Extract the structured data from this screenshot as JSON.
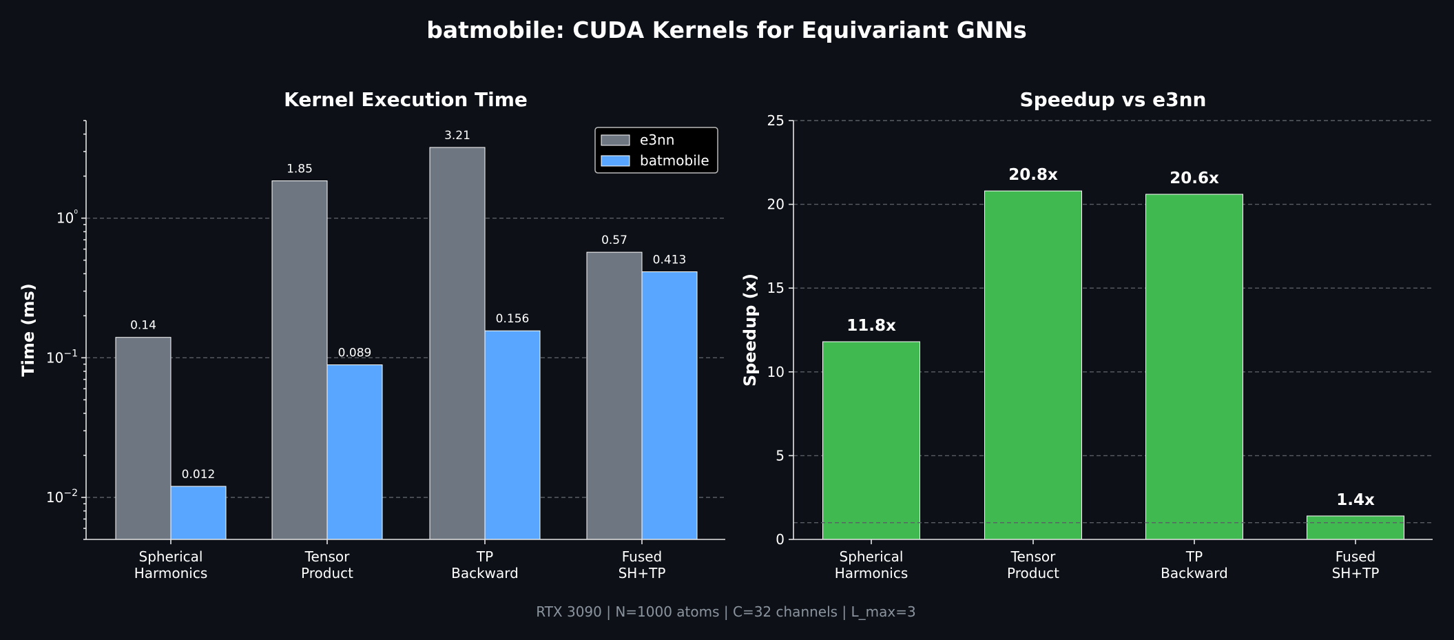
{
  "title": "batmobile: CUDA Kernels for Equivariant GNNs",
  "footer": "RTX 3090 | N=1000 atoms | C=32 channels | L_max=3",
  "colors": {
    "background": "#0d1117",
    "e3nn": "#6e7681",
    "batmobile": "#58a6ff",
    "speedup": "#3fb950",
    "footer": "#8b949e"
  },
  "chart_data": [
    {
      "type": "bar",
      "title": "Kernel Execution Time",
      "xlabel": "",
      "ylabel": "Time (ms)",
      "yscale": "log",
      "ylim": [
        0.005,
        5
      ],
      "yticks": [
        0.01,
        0.1,
        1
      ],
      "ytick_labels": [
        "10−2",
        "10−1",
        "10⁰"
      ],
      "grid": true,
      "legend": "top-right",
      "categories": [
        [
          "Spherical",
          "Harmonics"
        ],
        [
          "Tensor",
          "Product"
        ],
        [
          "TP",
          "Backward"
        ],
        [
          "Fused",
          "SH+TP"
        ]
      ],
      "series": [
        {
          "name": "e3nn",
          "values": [
            0.14,
            1.85,
            3.21,
            0.57
          ],
          "labels": [
            "0.14",
            "1.85",
            "3.21",
            "0.57"
          ]
        },
        {
          "name": "batmobile",
          "values": [
            0.012,
            0.089,
            0.156,
            0.413
          ],
          "labels": [
            "0.012",
            "0.089",
            "0.156",
            "0.413"
          ]
        }
      ]
    },
    {
      "type": "bar",
      "title": "Speedup vs e3nn",
      "xlabel": "",
      "ylabel": "Speedup (x)",
      "ylim": [
        0,
        25
      ],
      "yticks": [
        0,
        5,
        10,
        15,
        20,
        25
      ],
      "grid": true,
      "reference_line": 1,
      "categories": [
        [
          "Spherical",
          "Harmonics"
        ],
        [
          "Tensor",
          "Product"
        ],
        [
          "TP",
          "Backward"
        ],
        [
          "Fused",
          "SH+TP"
        ]
      ],
      "values": [
        11.8,
        20.8,
        20.6,
        1.4
      ],
      "labels": [
        "11.8x",
        "20.8x",
        "20.6x",
        "1.4x"
      ]
    }
  ]
}
